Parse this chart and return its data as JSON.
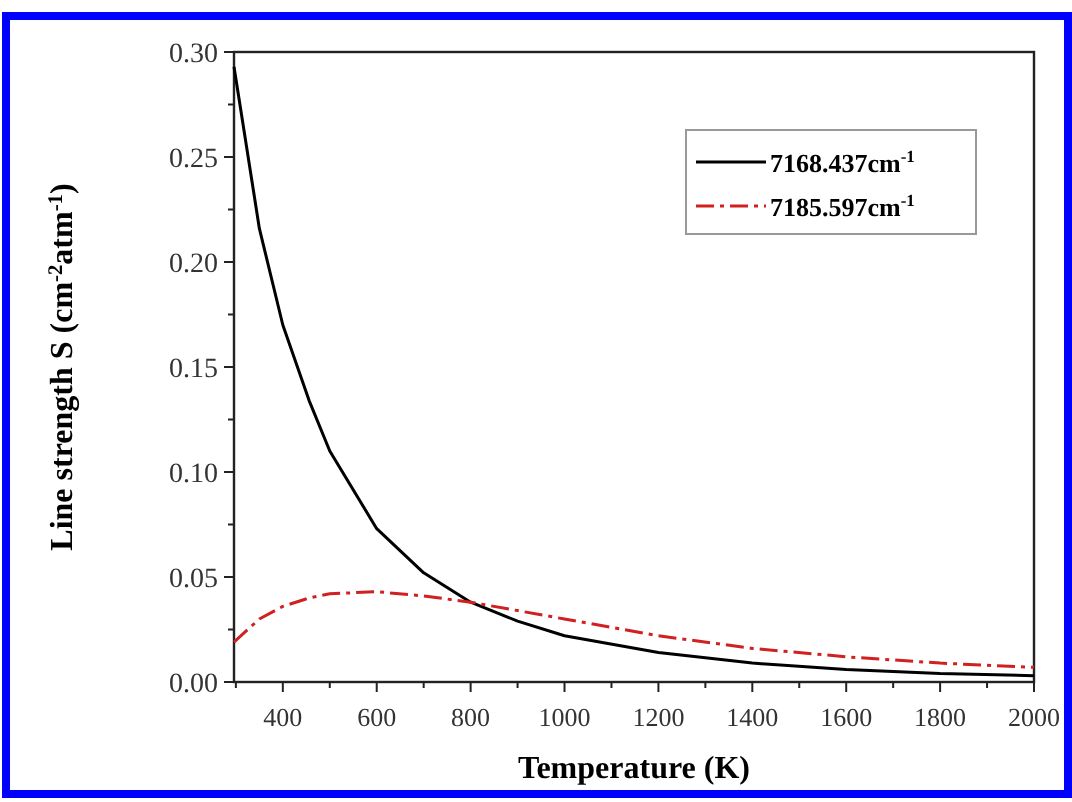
{
  "chart_data": {
    "type": "line",
    "xlabel": "Temperature  (K)",
    "ylabel": "Line strength S (cm$^{-2}$atm$^{-1}$)",
    "xlim": [
      296,
      2000
    ],
    "xticks": [
      400,
      600,
      800,
      1000,
      1200,
      1400,
      1600,
      1800,
      2000
    ],
    "ylim": [
      0,
      0.3
    ],
    "yticks": [
      {
        "value": 0,
        "label": "0.00"
      },
      {
        "value": 0.05,
        "label": "0.05"
      },
      {
        "value": 0.1,
        "label": "0.10"
      },
      {
        "value": 0.15,
        "label": "0.15"
      },
      {
        "value": 0.2,
        "label": "0.20"
      },
      {
        "value": 0.25,
        "label": "0.25"
      },
      {
        "value": 0.3,
        "label": "0.30"
      }
    ],
    "x": [
      296,
      350,
      400,
      456,
      500,
      600,
      700,
      800,
      900,
      1000,
      1200,
      1400,
      1600,
      1800,
      2000
    ],
    "series": [
      {
        "name": "7168.437cm$^{-1}$",
        "color": "#000000",
        "line_style": "solid",
        "values": [
          0.293,
          0.216,
          0.17,
          0.134,
          0.11,
          0.073,
          0.052,
          0.038,
          0.029,
          0.022,
          0.014,
          0.009,
          0.006,
          0.004,
          0.003
        ]
      },
      {
        "name": "7185.597cm$^{-1}$",
        "color": "#d02020",
        "line_style": "dashed",
        "values": [
          0.019,
          0.03,
          0.036,
          0.04,
          0.042,
          0.043,
          0.041,
          0.038,
          0.034,
          0.03,
          0.022,
          0.016,
          0.012,
          0.009,
          0.007
        ]
      }
    ],
    "legend": "top right",
    "grid": false,
    "marker": "none"
  }
}
